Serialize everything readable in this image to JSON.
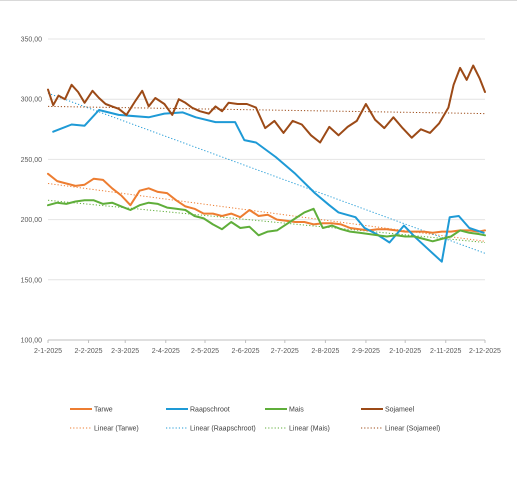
{
  "chart_data": {
    "type": "line",
    "title": "",
    "xlabel": "",
    "ylabel": "",
    "ylim": [
      100,
      350
    ],
    "yticks": [
      "100,00",
      "150,00",
      "200,00",
      "250,00",
      "300,00",
      "350,00"
    ],
    "xticks": [
      "2-1-2025",
      "2-2-2025",
      "2-3-2025",
      "2-4-2025",
      "2-5-2025",
      "2-6-2025",
      "2-7-2025",
      "2-8-2025",
      "2-9-2025",
      "2-10-2025",
      "2-11-2025",
      "2-12-2025"
    ],
    "grid": true,
    "legend_position": "bottom",
    "series": [
      {
        "name": "Tarwe",
        "color": "#ed7d31",
        "x": [
          "2-1-2025",
          "9-1-2025",
          "16-1-2025",
          "23-1-2025",
          "30-1-2025",
          "6-2-2025",
          "13-2-2025",
          "20-2-2025",
          "27-2-2025",
          "6-3-2025",
          "13-3-2025",
          "20-3-2025",
          "27-3-2025",
          "3-4-2025",
          "10-4-2025",
          "17-4-2025",
          "24-4-2025",
          "1-5-2025",
          "8-5-2025",
          "15-5-2025",
          "22-5-2025",
          "29-5-2025",
          "5-6-2025",
          "12-6-2025",
          "19-6-2025",
          "26-6-2025",
          "3-7-2025",
          "10-7-2025",
          "17-7-2025",
          "24-7-2025",
          "31-7-2025",
          "7-8-2025",
          "14-8-2025",
          "21-8-2025",
          "28-8-2025",
          "4-9-2025",
          "11-9-2025",
          "18-9-2025",
          "25-9-2025",
          "2-10-2025",
          "9-10-2025",
          "16-10-2025",
          "23-10-2025",
          "30-10-2025",
          "6-11-2025",
          "13-11-2025",
          "20-11-2025",
          "27-11-2025",
          "2-12-2025"
        ],
        "values": [
          238,
          232,
          230,
          228,
          229,
          234,
          233,
          226,
          220,
          212,
          224,
          226,
          223,
          222,
          216,
          211,
          209,
          205,
          205,
          203,
          205,
          202,
          208,
          203,
          204,
          200,
          199,
          198,
          198,
          196,
          197,
          197,
          196,
          193,
          192,
          191,
          192,
          192,
          191,
          190,
          190,
          190,
          189,
          190,
          190,
          191,
          191,
          190,
          191
        ]
      },
      {
        "name": "Raapschroot",
        "color": "#1e9ad6",
        "x": [
          "6-1-2025",
          "20-1-2025",
          "30-1-2025",
          "10-2-2025",
          "25-2-2025",
          "20-3-2025",
          "1-4-2025",
          "15-4-2025",
          "25-4-2025",
          "10-5-2025",
          "25-5-2025",
          "1-6-2025",
          "10-6-2025",
          "25-6-2025",
          "10-7-2025",
          "25-7-2025",
          "5-8-2025",
          "12-8-2025",
          "25-8-2025",
          "1-9-2025",
          "10-9-2025",
          "20-9-2025",
          "1-10-2025",
          "10-10-2025",
          "20-10-2025",
          "30-10-2025",
          "5-11-2025",
          "12-11-2025",
          "20-11-2025",
          "1-12-2025"
        ],
        "values": [
          273,
          279,
          278,
          291,
          287,
          285,
          288,
          289,
          285,
          281,
          281,
          266,
          264,
          252,
          238,
          222,
          212,
          206,
          202,
          193,
          188,
          181,
          195,
          185,
          175,
          165,
          202,
          203,
          193,
          189
        ]
      },
      {
        "name": "Mais",
        "color": "#5fae3a",
        "x": [
          "2-1-2025",
          "9-1-2025",
          "16-1-2025",
          "23-1-2025",
          "30-1-2025",
          "6-2-2025",
          "13-2-2025",
          "20-2-2025",
          "27-2-2025",
          "6-3-2025",
          "13-3-2025",
          "20-3-2025",
          "27-3-2025",
          "3-4-2025",
          "10-4-2025",
          "17-4-2025",
          "24-4-2025",
          "1-5-2025",
          "8-5-2025",
          "15-5-2025",
          "22-5-2025",
          "29-5-2025",
          "5-6-2025",
          "12-6-2025",
          "19-6-2025",
          "26-6-2025",
          "3-7-2025",
          "10-7-2025",
          "17-7-2025",
          "24-7-2025",
          "31-7-2025",
          "7-8-2025",
          "14-8-2025",
          "21-8-2025",
          "28-8-2025",
          "4-9-2025",
          "11-9-2025",
          "18-9-2025",
          "25-9-2025",
          "2-10-2025",
          "9-10-2025",
          "16-10-2025",
          "23-10-2025",
          "30-10-2025",
          "6-11-2025",
          "13-11-2025",
          "20-11-2025",
          "27-11-2025",
          "2-12-2025"
        ],
        "values": [
          212,
          214,
          213,
          215,
          216,
          216,
          213,
          214,
          211,
          208,
          212,
          214,
          213,
          210,
          209,
          208,
          203,
          201,
          196,
          192,
          198,
          193,
          194,
          187,
          190,
          191,
          196,
          201,
          206,
          209,
          193,
          195,
          192,
          190,
          189,
          188,
          187,
          186,
          187,
          186,
          186,
          184,
          182,
          184,
          186,
          191,
          189,
          188,
          187
        ]
      },
      {
        "name": "Sojameel",
        "color": "#9c4a17",
        "x": [
          "2-1-2025",
          "6-1-2025",
          "10-1-2025",
          "15-1-2025",
          "20-1-2025",
          "25-1-2025",
          "30-1-2025",
          "5-2-2025",
          "10-2-2025",
          "15-2-2025",
          "20-2-2025",
          "25-2-2025",
          "3-3-2025",
          "10-3-2025",
          "15-3-2025",
          "20-3-2025",
          "25-3-2025",
          "1-4-2025",
          "7-4-2025",
          "12-4-2025",
          "17-4-2025",
          "22-4-2025",
          "28-4-2025",
          "5-5-2025",
          "10-5-2025",
          "15-5-2025",
          "20-5-2025",
          "27-5-2025",
          "3-6-2025",
          "10-6-2025",
          "17-6-2025",
          "24-6-2025",
          "1-7-2025",
          "8-7-2025",
          "15-7-2025",
          "22-7-2025",
          "29-7-2025",
          "5-8-2025",
          "12-8-2025",
          "19-8-2025",
          "26-8-2025",
          "2-9-2025",
          "9-9-2025",
          "16-9-2025",
          "23-9-2025",
          "30-9-2025",
          "7-10-2025",
          "14-10-2025",
          "21-10-2025",
          "28-10-2025",
          "4-11-2025",
          "8-11-2025",
          "13-11-2025",
          "18-11-2025",
          "23-11-2025",
          "28-11-2025",
          "2-12-2025"
        ],
        "values": [
          308,
          295,
          303,
          300,
          312,
          306,
          297,
          307,
          301,
          296,
          294,
          292,
          287,
          299,
          307,
          294,
          301,
          296,
          287,
          300,
          297,
          293,
          290,
          288,
          294,
          290,
          297,
          296,
          296,
          293,
          276,
          282,
          272,
          282,
          279,
          270,
          264,
          277,
          270,
          277,
          282,
          296,
          283,
          276,
          285,
          276,
          268,
          275,
          272,
          280,
          293,
          312,
          326,
          316,
          328,
          317,
          306
        ]
      }
    ],
    "trendlines": [
      {
        "name": "Linear (Tarwe)",
        "color": "#ed7d31",
        "x": [
          "2-1-2025",
          "2-12-2025"
        ],
        "values": [
          230,
          182
        ]
      },
      {
        "name": "Linear (Raapschroot)",
        "color": "#1e9ad6",
        "x": [
          "2-1-2025",
          "2-12-2025"
        ],
        "values": [
          305,
          172
        ]
      },
      {
        "name": "Linear (Mais)",
        "color": "#5fae3a",
        "x": [
          "2-1-2025",
          "2-12-2025"
        ],
        "values": [
          216,
          181
        ]
      },
      {
        "name": "Linear (Sojameel)",
        "color": "#9c4a17",
        "x": [
          "2-1-2025",
          "2-12-2025"
        ],
        "values": [
          294,
          288
        ]
      }
    ]
  }
}
